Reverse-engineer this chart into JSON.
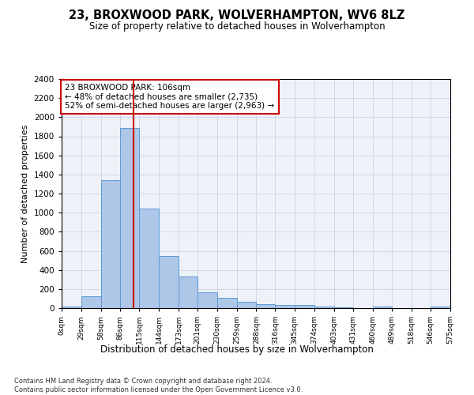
{
  "title1": "23, BROXWOOD PARK, WOLVERHAMPTON, WV6 8LZ",
  "title2": "Size of property relative to detached houses in Wolverhampton",
  "xlabel": "Distribution of detached houses by size in Wolverhampton",
  "ylabel": "Number of detached properties",
  "footnote": "Contains HM Land Registry data © Crown copyright and database right 2024.\nContains public sector information licensed under the Open Government Licence v3.0.",
  "bin_edges": [
    0,
    29,
    58,
    86,
    115,
    144,
    173,
    201,
    230,
    259,
    288,
    316,
    345,
    374,
    403,
    431,
    460,
    489,
    518,
    546,
    575
  ],
  "bin_labels": [
    "0sqm",
    "29sqm",
    "58sqm",
    "86sqm",
    "115sqm",
    "144sqm",
    "173sqm",
    "201sqm",
    "230sqm",
    "259sqm",
    "288sqm",
    "316sqm",
    "345sqm",
    "374sqm",
    "403sqm",
    "431sqm",
    "460sqm",
    "489sqm",
    "518sqm",
    "546sqm",
    "575sqm"
  ],
  "values": [
    20,
    125,
    1340,
    1890,
    1045,
    545,
    335,
    165,
    110,
    65,
    40,
    30,
    30,
    20,
    5,
    0,
    20,
    0,
    0,
    20
  ],
  "bar_color": "#aec6e8",
  "bar_edge_color": "#5b9bd5",
  "property_sqm": 106,
  "vline_color": "#cc0000",
  "annotation_text": "23 BROXWOOD PARK: 106sqm\n← 48% of detached houses are smaller (2,735)\n52% of semi-detached houses are larger (2,963) →",
  "annotation_box_color": "#ffffff",
  "annotation_box_edge": "#cc0000",
  "ylim": [
    0,
    2400
  ],
  "yticks": [
    0,
    200,
    400,
    600,
    800,
    1000,
    1200,
    1400,
    1600,
    1800,
    2000,
    2200,
    2400
  ],
  "grid_color": "#d0d8e8",
  "bg_color": "#eef2f8"
}
